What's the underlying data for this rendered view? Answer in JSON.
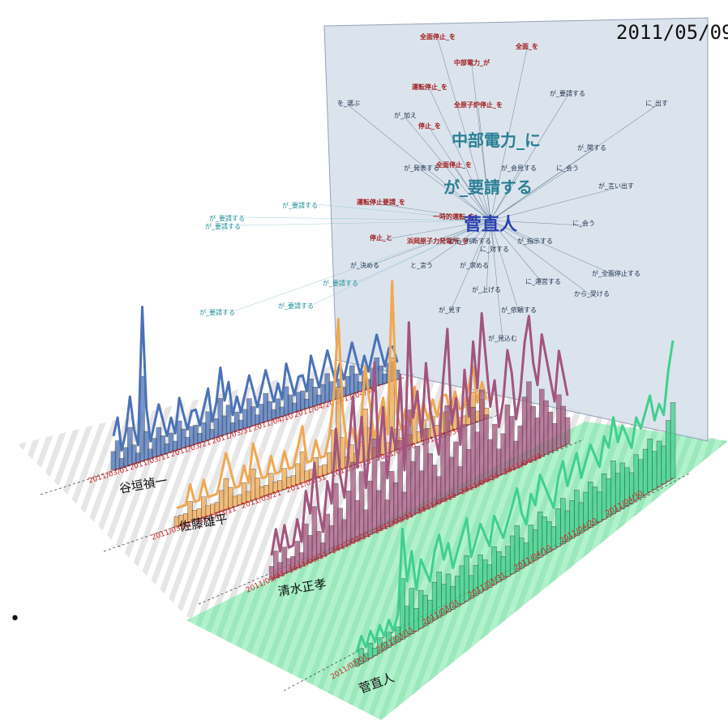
{
  "header": {
    "date": "2011/05/09"
  },
  "network": {
    "center": "菅直人",
    "big_labels": [
      "が_要請する",
      "中部電力_に"
    ],
    "words_red": [
      "全面停止_を",
      "中部電力_が",
      "全面_を",
      "運転停止_を",
      "全原子炉停止_を",
      "停止_を",
      "全面停止_を",
      "運転停止要請_を",
      "一時的運転_を",
      "停止_と",
      "浜岡原子力発電所_を"
    ],
    "words_dark": [
      "が_上げる",
      "が_見す",
      "が_依頼する",
      "が_見込む",
      "に_出す",
      "が_要請する",
      "が_関する",
      "が_言い出す",
      "に_会う",
      "が_全面停止する",
      "に_運営する",
      "から_受ける",
      "が_求める",
      "と_言う",
      "に_会う",
      "が_会見する",
      "を_選ぶ",
      "が_加え",
      "が_発表する",
      "が_決める",
      "から_判断する",
      "に_対する",
      "が_指示する"
    ],
    "words_cyan": [
      "が_要請する",
      "が_要請する",
      "が_要請する"
    ]
  },
  "chart_data": {
    "type": "line",
    "title": "",
    "xlabel": "",
    "ylabel": "",
    "x_start": "2011/03/01",
    "x_end": "2011/05/09",
    "tick_labels": [
      "2011/03/01",
      "2011/03/11",
      "2011/03/21",
      "2011/03/31",
      "2011/04/10",
      "2011/04/20",
      "2011/04/30"
    ],
    "series": [
      {
        "name": "谷垣禎一",
        "color": "#4a72b8",
        "values": [
          2,
          3,
          1,
          2,
          4,
          2,
          1,
          9,
          3,
          1,
          2,
          3,
          2,
          1,
          2,
          1,
          3,
          2,
          1,
          2,
          2,
          1,
          2,
          3,
          1,
          2,
          4,
          2,
          3,
          1,
          2,
          1,
          2,
          3,
          2,
          1,
          2,
          3,
          2,
          1,
          2,
          1,
          3,
          2,
          1,
          2,
          2,
          1,
          3,
          2,
          1,
          2,
          3,
          2,
          1,
          2,
          1,
          2,
          3,
          2,
          1,
          2,
          1,
          2,
          3,
          2,
          1,
          2,
          2,
          1
        ]
      },
      {
        "name": "佐藤雄平",
        "color": "#f0a851",
        "values": [
          1,
          1,
          1,
          2,
          1,
          1,
          2,
          1,
          1,
          1,
          2,
          3,
          2,
          1,
          1,
          2,
          1,
          3,
          2,
          1,
          1,
          2,
          1,
          1,
          2,
          1,
          1,
          2,
          3,
          1,
          1,
          2,
          1,
          1,
          2,
          4,
          8,
          3,
          1,
          2,
          1,
          2,
          5,
          3,
          1,
          2,
          3,
          1,
          9,
          2,
          1,
          2,
          1,
          3,
          1,
          2,
          1,
          2,
          1,
          2,
          2,
          1,
          2,
          1,
          1,
          2,
          3,
          1,
          2,
          1
        ]
      },
      {
        "name": "清水正孝",
        "color": "#a3547e",
        "values": [
          1,
          2,
          1,
          2,
          1,
          1,
          2,
          1,
          3,
          2,
          4,
          2,
          1,
          3,
          2,
          5,
          3,
          2,
          4,
          6,
          3,
          5,
          2,
          4,
          7,
          3,
          5,
          2,
          4,
          3,
          6,
          2,
          8,
          4,
          5,
          3,
          6,
          4,
          3,
          2,
          5,
          7,
          3,
          4,
          2,
          5,
          3,
          6,
          4,
          7,
          5,
          3,
          4,
          2,
          3,
          5,
          4,
          2,
          3,
          5,
          6,
          4,
          3,
          5,
          4,
          3,
          2,
          4,
          3,
          2
        ]
      },
      {
        "name": "菅直人",
        "color": "#3fd08d",
        "values": [
          1,
          2,
          1,
          2,
          1,
          2,
          1,
          2,
          1,
          2,
          8,
          4,
          6,
          3,
          5,
          4,
          3,
          5,
          6,
          4,
          5,
          3,
          4,
          5,
          6,
          3,
          4,
          5,
          4,
          3,
          5,
          4,
          3,
          4,
          5,
          6,
          4,
          3,
          5,
          4,
          6,
          5,
          4,
          3,
          5,
          6,
          4,
          5,
          6,
          4,
          5,
          6,
          5,
          4,
          6,
          5,
          7,
          5,
          6,
          5,
          4,
          6,
          5,
          6,
          7,
          5,
          6,
          5,
          8,
          10
        ]
      }
    ]
  },
  "bullet": "•"
}
